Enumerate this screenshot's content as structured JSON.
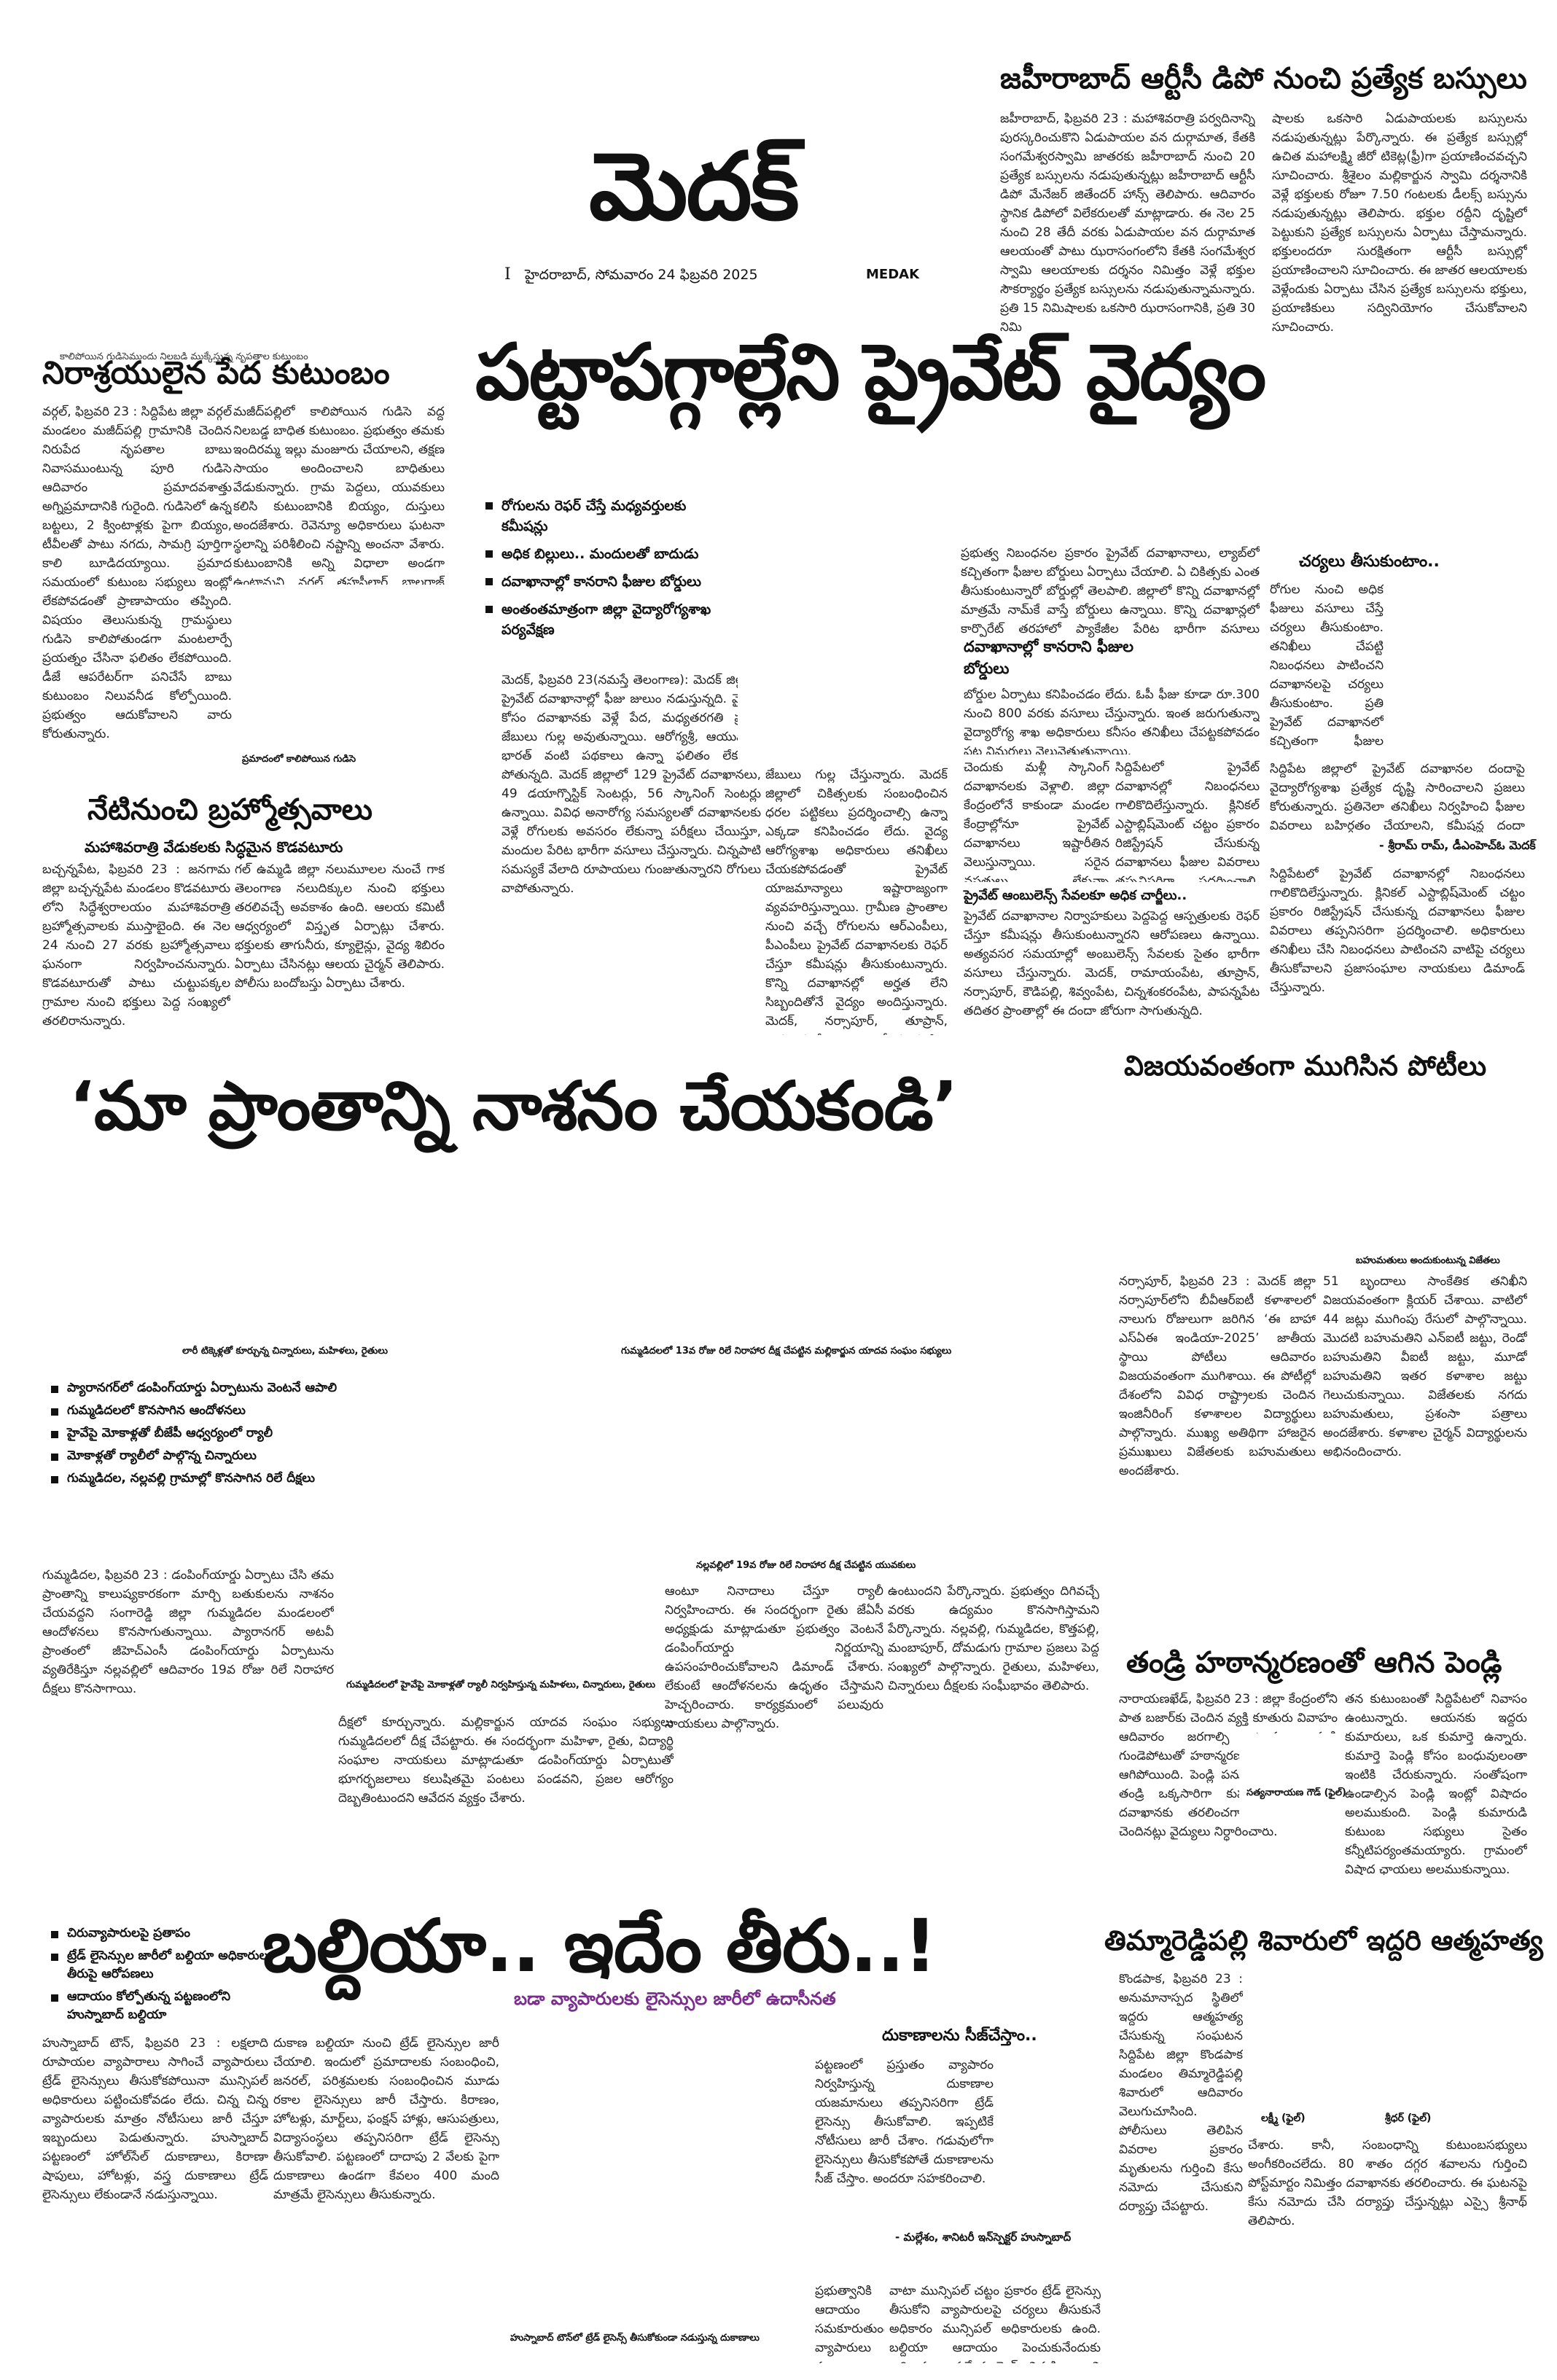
{
  "masthead": {
    "title": "మెదక్",
    "page_number": "I",
    "dateline": "హైదరాబాద్, సోమవారం 24 ఫిబ్రవరి 2025",
    "edition": "MEDAK"
  },
  "top_right": {
    "headline": "జహీరాబాద్ ఆర్టీసీ డిపో నుంచి ప్రత్యేక బస్సులు",
    "col1": "జహీరాబాద్, ఫిబ్రవరి 23 : మహాశివరాత్రి పర్వదినాన్ని పురస్కరించుకొని ఏడుపాయల వన దుర్గామాత, కేతకి సంగమేశ్వరస్వామి జాతరకు జహీరాబాద్ నుంచి 20 ప్రత్యేక బస్సులను నడుపుతున్నట్లు జహీరాబాద్ ఆర్టీసీ డిపో మేనేజర్ జితేందర్ హాన్స్ తెలిపారు. ఆదివారం స్థానిక డిపోలో విలేకరులతో మాట్లాడారు. ఈ నెల 25 నుంచి 28 తేదీ వరకు ఏడుపాయల వన దుర్గామాత ఆలయంతో పాటు ఝరాసంగంలోని కేతకి సంగమేశ్వర స్వామి ఆలయాలకు దర్శనం నిమిత్తం వెళ్లే భక్తుల సౌకర్యార్థం ప్రత్యేక బస్సులను నడుపుతున్నామన్నారు. ప్రతి 15 నిమిషాలకు ఒకసారి ఝరాసంగానికి, ప్రతి 30 నిమి",
    "col2": "షాలకు ఒకసారి ఏడుపాయలకు బస్సులను నడుపుతున్నట్లు పేర్కొన్నారు. ఈ ప్రత్యేక బస్సుల్లో ఉచిత మహాలక్ష్మి జీరో టికెట్ల(ఫ్రీ)గా ప్రయాణించవచ్చని సూచించారు. శ్రీశైలం మల్లికార్జున స్వామి దర్శనానికి వెళ్లే భక్తులకు రోజూ 7.50 గంటలకు డీలక్స్ బస్సును నడుపుతున్నట్లు తెలిపారు. భక్తుల రద్దీని దృష్టిలో పెట్టుకుని ప్రత్యేక బస్సులను ఏర్పాటు చేస్తామన్నారు. భక్తులందరూ సురక్షితంగా ఆర్టీసీ బస్సుల్లో ప్రయాణించాలని సూచించారు. ఈ జాతర ఆలయాలకు వెళ్లేందుకు ఏర్పాటు చేసిన ప్రత్యేక బస్సులను భక్తులు, ప్రయాణికులు సద్వినియోగం చేసుకోవాలని సూచించారు."
  },
  "left_story": {
    "kicker": "కాలిపోయిన గుడిసెముందు నిలబడి ముక్కేస్తున్న నృపతాల కుటుంబం",
    "headline": "నిరాశ్రయులైన పేద కుటుంబం",
    "col1": "వర్గల్, ఫిబ్రవరి 23 : సిద్దిపేట జిల్లా వర్గల్ మండలం మజీద్‌పల్లి గ్రామానికి చెందిన నిరుపేద నృపతాల బాబు నివాసముంటున్న పూరి గుడిసె ఆదివారం ప్రమాదవశాత్తు అగ్నిప్రమాదానికి గురైంది. గుడిసెలో ఉన్న బట్టలు, 2 క్వింటాళ్లకు పైగా బియ్యం, టీవీలతో పాటు నగదు, సామగ్రి పూర్తిగా కాలి బూడిదయ్యాయి. ప్రమాద సమయంలో కుటుంబ సభ్యులు ఇంట్లో లేకపోవడంతో ప్రాణాపాయం తప్పింది. విషయం తెలుసుకున్న గ్రామస్థులు గుడిసె కాలిపోతుండగా మంటలార్పే ప్రయత్నం చేసినా ఫలితం లేకపోయింది. డీజే ఆపరేటర్‌గా పనిచేసే బాబు కుటుంబం నిలువనీడ కోల్పోయింది. ప్రభుత్వం ఆదుకోవాలని వారు కోరుతున్నారు.",
    "col2": "మజీద్‌పల్లిలో కాలిపోయిన గుడిసె వద్ద నిలబడ్డ బాధిత కుటుంబం. ప్రభుత్వం తమకు ఇందిరమ్మ ఇల్లు మంజూరు చేయాలని, తక్షణ సాయం అందించాలని బాధితులు వేడుకున్నారు. గ్రామ పెద్దలు, యువకులు కలిసి కుటుంబానికి బియ్యం, దుస్తులు అందజేశారు. రెవెన్యూ అధికారులు ఘటనా స్థలాన్ని పరిశీలించి నష్టాన్ని అంచనా వేశారు. కుటుంబానికి అన్ని విధాలా అండగా ఉంటామని వర్గల్ తహసీల్దార్ బాలరాజ్ మీడియాకు తెలిపారు.",
    "photo_caption": "ప్రమాదంలో కాలిపోయిన గుడిసె"
  },
  "lead": {
    "headline": "పట్టాపగ్గాల్లేని ప్రైవేట్ వైద్యం",
    "bullets": [
      "రోగులను రెఫర్ చేస్తే మధ్యవర్తులకు కమీషన్లు",
      "అధిక బిల్లులు.. మందులతో బాదుడు",
      "దవాఖానాల్లో కానరాని ఫీజుల బోర్డులు",
      "అంతంతమాత్రంగా జిల్లా వైద్యారోగ్యశాఖ పర్యవేక్షణ"
    ],
    "col1": "మెదక్, ఫిబ్రవరి 23(నమస్తే తెలంగాణ): మెదక్ జిల్లాలో ప్రైవేట్ దవాఖానాల్లో ఫీజు జులుం నడుస్తున్నది. వైద్యం కోసం దవాఖానకు వెళ్లే పేద, మధ్యతరగతి ప్రజల జేబులు గుల్ల అవుతున్నాయి. ఆరోగ్యశ్రీ, ఆయుష్మాన్ భారత్ వంటి పథకాలు ఉన్నా ఫలితం లేకుండా పోతున్నది. మెదక్ జిల్లాలో 129 ప్రైవేట్ దవాఖానలు, 49 డయాగ్నొస్టిక్ సెంటర్లు, 56 స్కానింగ్ సెంటర్లు ఉన్నాయి. వివిధ అనారోగ్య సమస్యలతో దవాఖానలకు వెళ్లే రోగులకు అవసరం లేకున్నా పరీక్షలు చేయిస్తూ, మందుల పేరిట భారీగా వసూలు చేస్తున్నారు. చిన్నపాటి సమస్యకే వేలాది రూపాయలు గుంజుతున్నారని రోగులు వాపోతున్నారు.",
    "col2": "జేబులు గుల్ల చేస్తున్నారు. మెదక్ జిల్లాలో చికిత్సలకు సంబంధించిన ధరల పట్టికలు ప్రదర్శించాల్సి ఉన్నా ఎక్కడా కనిపించడం లేదు. వైద్య ఆరోగ్యశాఖ అధికారులు తనిఖీలు చేయకపోవడంతో ప్రైవేట్ యాజమాన్యాలు ఇష్టారాజ్యంగా వ్యవహరిస్తున్నాయి. గ్రామీణ ప్రాంతాల నుంచి వచ్చే రోగులను ఆర్ఎంపీలు, పీఎంపీలు ప్రైవేట్ దవాఖానలకు రెఫర్ చేస్తూ కమీషన్లు తీసుకుంటున్నారు. కొన్ని దవాఖానల్లో అర్హత లేని సిబ్బందితోనే వైద్యం అందిస్తున్నారు. మెదక్, నర్సాపూర్, తూప్రాన్, రామాయంపేట ప్రాంతాల్లో ఈ పరిస్థితి ఎక్కువగా ఉంది.",
    "col3": "ప్రభుత్వ నిబంధనల ప్రకారం ప్రైవేట్ దవాఖానాలు, ల్యాబ్‌లో కచ్చితంగా ఫీజుల బోర్డులు ఏర్పాటు చేయాలి. ఏ చికిత్సకు ఎంత తీసుకుంటున్నారో బోర్డుల్లో తెలపాలి. జిల్లాలో కొన్ని దవాఖానల్లో మాత్రమే నామ్‌కే వాస్తే బోర్డులు ఉన్నాయి. కొన్ని దవాఖాన్లలో కార్పొరేట్ తరహాలో ప్యాకేజీల పేరిట భారీగా వసూలు చేస్తున్నారు. రోగుల బంధువులు ప్రశ్నిస్తే దురుసుగా ప్రవర్తిస్తున్నారని ఆరోపణలు ఉన్నాయి.",
    "col4": "చెందుకు మళ్లీ స్కానింగ్ దవాఖానలకు వెళ్లాలి. జిల్లా కేంద్రంలోనే కాకుండా మండల కేంద్రాల్లోనూ ప్రైవేట్ దవాఖానలు ఇష్టారీతిన వెలుస్తున్నాయి. సరైన వసతులు లేకున్నా అనుమతులు పొందుతున్నారు. కొందరు వైద్యులు ప్రభుత్వ దవాఖానాల్లో విధులు నిర్వర్తిస్తూనే సొంత క్లినిక్‌లు నడుపుతున్నారు. ఫీజుల వివరాలు ప్రదర్శించాలని, అధిక వసూళ్లను అరికట్టాలని ప్రజలు కోరుతున్నారు.",
    "col5": "సిద్దిపేటలో ప్రైవేట్ దవాఖానల్లో నిబంధనలు గాలికొదిలేస్తున్నారు. క్లినికల్ ఎస్టాబ్లిష్‌మెంట్ చట్టం ప్రకారం రిజిస్ట్రేషన్ చేసుకున్న దవాఖానలు ఫీజుల వివరాలు తప్పనిసరిగా ప్రదర్శించాలి. అధికారులు తనిఖీలు చేసి నిబంధనలు పాటించని వాటిపై చర్యలు తీసుకోవాలని ప్రజాసంఘాల నాయకులు డిమాండ్ చేస్తున్నారు.",
    "sub1": "దవాఖానాల్లో కానరాని ఫీజుల బోర్డులు",
    "sub1_text": "బోర్డుల ఏర్పాటు కనిపించడం లేదు. ఓపీ ఫీజు కూడా రూ.300 నుంచి 800 వరకు వసూలు చేస్తున్నారు. ఇంత జరుగుతున్నా వైద్యారోగ్య శాఖ అధికారులు కనీసం తనిఖీలు చేపట్టకపోవడం పట్ల విమర్శలు వెల్లువెత్తుతున్నాయి.",
    "sub2": "ప్రైవేట్ ఆంబులెన్స్ సేవలకూ అధిక చార్జీలు..",
    "sub2_text": "ప్రైవేట్ దవాఖానాల నిర్వాహకులు పెద్దపెద్ద ఆస్పత్రులకు రెఫర్ చేస్తూ కమీషన్లు తీసుకుంటున్నారని ఆరోపణలు ఉన్నాయి. అత్యవసర సమయాల్లో అంబులెన్స్ సేవలకు సైతం భారీగా వసూలు చేస్తున్నారు. మెదక్, రామాయంపేట, తూప్రాన్, నర్సాపూర్, కౌడిపల్లి, శివ్వంపేట, చిన్నశంకరంపేట, పాపన్నపేట తదితర ప్రాంతాల్లో ఈ దందా జోరుగా సాగుతున్నది.",
    "sidebar_title": "చర్యలు తీసుకుంటాం..",
    "sidebar_text": "రోగుల నుంచి అధిక ఫీజులు వసూలు చేస్తే చర్యలు తీసుకుంటాం. తనిఖీలు చేపట్టి నిబంధనలు పాటించని దవాఖానలపై చర్యలు తీసుకుంటాం. ప్రతి ప్రైవేట్ దవాఖానలో కచ్చితంగా ఫీజుల బోర్డులు ఏర్పాటు చేయాలి. రెఫరల్ కమీషన్ల దందాపై నిఘా పెడతాం. ప్రజలు ఫిర్యాదు చేస్తే వెంటనే స్పందిస్తాం.",
    "sidebar_quote": "- శ్రీరామ్ రామ్, డీఎంహెచ్‌ఓ మెదక్",
    "sidebar_text2": "సిద్దిపేట జిల్లాలో ప్రైవేట్ దవాఖానల దందాపై వైద్యారోగ్యశాఖ ప్రత్యేక దృష్టి సారించాలని ప్రజలు కోరుతున్నారు. ప్రతినెలా తనిఖీలు నిర్వహించి ఫీజుల వివరాలు బహిర్గతం చేయాలని, కమీషన్ల దందా అరికట్టాలని వినియోగదారుల సంఘం ప్రతినిధులు సూచించారు."
  },
  "festival": {
    "headline": "నేటినుంచి బ్రహ్మోత్సవాలు",
    "subhead": "మహాశివరాత్రి వేడుకలకు సిద్ధమైన కొడవటూరు",
    "col1": "బచ్చన్నపేట, ఫిబ్రవరి 23 : జనగామ జిల్లా బచ్చన్నపేట మండలం కొడవటూరు లోని సిద్ధేశ్వరాలయం మహాశివరాత్రి బ్రహ్మోత్సవాలకు ముస్తాబైంది. ఈ నెల 24 నుంచి 27 వరకు బ్రహ్మోత్సవాలు ఘనంగా నిర్వహించనున్నారు. కొడవటూరుతో పాటు చుట్టుపక్కల గ్రామాల నుంచి భక్తులు పెద్ద సంఖ్యలో తరలిరానున్నారు.",
    "col2": "గల్ ఉమ్మడి జిల్లా నలుమూలల నుంచే గాక తెలంగాణ నలుదిక్కుల నుంచి భక్తులు తరలివచ్చే అవకాశం ఉంది. ఆలయ కమిటీ ఆధ్వర్యంలో విస్తృత ఏర్పాట్లు చేశారు. భక్తులకు తాగునీరు, క్యూలైన్లు, వైద్య శిబిరం ఏర్పాటు చేసినట్లు ఆలయ చైర్మన్ తెలిపారు. పోలీసు బందోబస్తు ఏర్పాటు చేశారు."
  },
  "banner": {
    "headline": "‘మా ప్రాంతాన్ని నాశనం చేయకండి’",
    "photo1_caption": "లారీ టిక్కెళ్లతో కూర్చున్న చిన్నారులు, మహిళలు, రైతులు",
    "photo2_caption": "గుమ్మడిదలలో 13వ రోజు రిలే నిరాహార దీక్ష చేపట్టిన మల్లికార్జున యాదవ సంఘం సభ్యులు",
    "bullets": [
      "ప్యారానగర్‌లో డంపింగ్‌యార్డు ఏర్పాటును వెంటనే ఆపాలి",
      "గుమ్మడిదలలో కొనసాగిన ఆందోళనలు",
      "హైవేపై మోకాళ్లతో బీజేపీ ఆధ్వర్యంలో ర్యాలీ",
      "మోకాళ్లతో ర్యాలీలో పాల్గొన్న చిన్నారులు",
      "గుమ్మడిదల, నల్లవల్లి గ్రామాల్లో కొనసాగిన రిలే దీక్షలు"
    ],
    "col1": "గుమ్మడిదల, ఫిబ్రవరి 23 : డంపింగ్‌యార్డు ఏర్పాటు చేసి తమ ప్రాంతాన్ని కాలుష్యకారకంగా మార్చి బతుకులను నాశనం చేయవద్దని సంగారెడ్డి జిల్లా గుమ్మడిదల మండలంలో ఆందోళనలు కొనసాగుతున్నాయి. ప్యారానగర్ అటవీ ప్రాంతంలో జీహెచ్‌ఎంసీ డంపింగ్‌యార్డు ఏర్పాటును వ్యతిరేకిస్తూ నల్లవల్లిలో ఆదివారం 19వ రోజు రిలే నిరాహార దీక్షలు కొనసాగాయి.",
    "mid_caption": "నల్లవల్లిలో 19వ రోజు రిలే నిరాహార దీక్ష చేపట్టిన యువకులు",
    "small_caption": "గుమ్మడిదలలో హైవేపై మోకాళ్లతో ర్యాలీ నిర్వహిస్తున్న మహిళలు, చిన్నారులు, రైతులు",
    "col2": "దీక్షలో కూర్చున్నారు. మల్లికార్జున యాదవ సంఘం సభ్యులు గుమ్మడిదలలో దీక్ష చేపట్టారు. ఈ సందర్భంగా మహిళా, రైతు, విద్యార్థి సంఘాల నాయకులు మాట్లాడుతూ డంపింగ్‌యార్డు ఏర్పాటుతో భూగర్భజలాలు కలుషితమై పంటలు పండవని, ప్రజల ఆరోగ్యం దెబ్బతింటుందని ఆవేదన వ్యక్తం చేశారు.",
    "col3": "ఆంటూ నినాదాలు చేస్తూ ర్యాలీ నిర్వహించారు. ఈ సందర్భంగా రైతు జేఏసీ అధ్యక్షుడు మాట్లాడుతూ ప్రభుత్వం వెంటనే డంపింగ్‌యార్డు నిర్ణయాన్ని ఉపసంహరించుకోవాలని డిమాండ్ చేశారు. లేకుంటే ఆందోళనలను ఉధృతం చేస్తామని హెచ్చరించారు. కార్యక్రమంలో పలువురు నాయకులు పాల్గొన్నారు.",
    "col4": "ఉంటుందని పేర్కొన్నారు. ప్రభుత్వం దిగివచ్చే వరకు ఉద్యమం కొనసాగిస్తామని పేర్కొన్నారు. నల్లవల్లి, గుమ్మడిదల, కొత్తపల్లి, మంబాపూర్, దోమడుగు గ్రామాల ప్రజలు పెద్ద సంఖ్యలో పాల్గొన్నారు. రైతులు, మహిళలు, చిన్నారులు దీక్షలకు సంఘీభావం తెలిపారు."
  },
  "right_results": {
    "headline": "విజయవంతంగా ముగిసిన పోటీలు",
    "photo_caption": "బహుమతులు అందుకుంటున్న విజేతలు",
    "col1": "నర్సాపూర్, ఫిబ్రవరి 23 : మెదక్ జిల్లా నర్సాపూర్‌లోని బీవీఆర్ఐటీ కళాశాలలో నాలుగు రోజులుగా జరిగిన ‘ఈ బాహా ఎస్ఏఈ ఇండియా-2025’ జాతీయ స్థాయి పోటీలు ఆదివారం విజయవంతంగా ముగిశాయి. ఈ పోటీల్లో దేశంలోని వివిధ రాష్ట్రాలకు చెందిన ఇంజినీరింగ్ కళాశాలల విద్యార్థులు పాల్గొన్నారు. ముఖ్య అతిథిగా హాజరైన ప్రముఖులు విజేతలకు బహుమతులు అందజేశారు.",
    "col2": "51 బృందాలు సాంకేతిక తనిఖీని విజయవంతంగా క్లియర్ చేశాయి. వాటిలో 44 జట్లు ముగింపు రేసులో పాల్గొన్నాయి. మొదటి బహుమతిని ఎన్ఐటీ జట్టు, రెండో బహుమతిని వీఐటీ జట్టు, మూడో బహుమతిని ఇతర కళాశాల జట్టు గెలుచుకున్నాయి. విజేతలకు నగదు బహుమతులు, ప్రశంసా పత్రాలు అందజేశారు. కళాశాల చైర్మన్ విద్యార్థులను అభినందించారు."
  },
  "wedding": {
    "headline": "తండ్రి హఠాన్మరణంతో ఆగిన పెండ్లి",
    "col1": "నారాయణఖేడ్, ఫిబ్రవరి 23 : జిల్లా కేంద్రంలోని పాత బజార్‌కు చెందిన వ్యక్తి కూతురు వివాహం ఆదివారం జరగాల్సి ఉండగా తండ్రి గుండెపోటుతో హఠాన్మరణం చెందడంతో పెండ్లి ఆగిపోయింది. పెండ్లి పనుల్లో నిమగ్నమై ఉన్న తండ్రి ఒక్కసారిగా కుప్పకూలాడు. స్థానిక దవాఖానకు తరలించగా అప్పటికే మృతి చెందినట్లు వైద్యులు నిర్ధారించారు.",
    "col2": "తన కుటుంబంతో సిద్దిపేటలో నివాసం ఉంటున్నారు. ఆయనకు ఇద్దరు కుమారులు, ఒక కుమార్తె ఉన్నారు. కుమార్తె పెండ్లి కోసం బంధువులంతా ఇంటికి చేరుకున్నారు. సంతోషంగా ఉండాల్సిన పెండ్లి ఇంట్లో విషాదం అలముకుంది. పెండ్లి కుమారుడి కుటుంబ సభ్యులు సైతం కన్నీటిపర్యంతమయ్యారు. గ్రామంలో విషాద ఛాయలు అలముకున్నాయి.",
    "photo_caption": "సత్యనారాయణ గౌడ్ (ఫైల్)"
  },
  "suicide": {
    "headline": "తిమ్మారెడ్డిపల్లి శివారులో ఇద్దరి ఆత్మహత్య",
    "col1": "కొండపాక, ఫిబ్రవరి 23 : అనుమానాస్పద స్థితిలో ఇద్దరు ఆత్మహత్య చేసుకున్న సంఘటన సిద్దిపేట జిల్లా కొండపాక మండలం తిమ్మారెడ్డిపల్లి శివారులో ఆదివారం వెలుగుచూసింది. పోలీసులు తెలిపిన వివరాల ప్రకారం మృతులను గుర్తించి కేసు నమోదు చేసుకుని దర్యాప్తు చేపట్టారు.",
    "col2": "చేశారు. కానీ, సంబంధాన్ని కుటుంబసభ్యులు అంగీకరించలేదు. 80 శాతం దగ్గర శవాలను గుర్తించి పోస్ట్‌మార్టం నిమిత్తం దవాఖానకు తరలించారు. ఈ ఘటనపై కేసు నమోదు చేసి దర్యాప్తు చేస్తున్నట్లు ఎస్సై శ్రీనాథ్ తెలిపారు.",
    "photo1_caption": "లక్ష్మీ (ఫైల్)",
    "photo2_caption": "శ్రీధర్ (ఫైల్)"
  },
  "bottom": {
    "headline": "బల్దియా.. ఇదేం తీరు..!",
    "subhead": "బడా వ్యాపారులకు లైసెన్సుల జారీలో ఉదాసీనత",
    "bullets": [
      "చిరువ్యాపారులపై ప్రతాపం",
      "ట్రేడ్ లైసెన్సుల జారీలో బల్దియా అధికారుల తీరుపై ఆరోపణలు",
      "ఆదాయం కోల్పోతున్న పట్టణంలోని హుస్నాబాద్ బల్దియా"
    ],
    "col1": "హుస్నాబాద్ టౌన్, ఫిబ్రవరి 23 : లక్షలాది రూపాయల వ్యాపారాలు సాగించే వ్యాపారులు ట్రేడ్ లైసెన్సులు తీసుకోకపోయినా మున్సిపల్ అధికారులు పట్టించుకోవడం లేదు. చిన్న చిన్న వ్యాపారులకు మాత్రం నోటీసులు జారీ చేస్తూ ఇబ్బందులు పెడుతున్నారు. హుస్నాబాద్ పట్టణంలో హోల్‌సేల్ దుకాణాలు, కిరాణా షాపులు, హోటళ్లు, వస్త్ర దుకాణాలు ట్రేడ్ లైసెన్సులు లేకుండానే నడుస్తున్నాయి.",
    "col2": "దుకాణ బల్దియా నుంచి ట్రేడ్ లైసెన్సుల జారీ చేయాలి. ఇందులో ప్రమాదాలకు సంబంధించి, జనరల్, పరిశ్రమలకు సంబంధించిన మూడు రకాల లైసెన్సులు జారీ చేస్తారు. కిరాణం, హోటళ్లు, మార్ట్‌లు, ఫంక్షన్ హాళ్లు, ఆసుపత్రులు, విద్యాసంస్థలు తప్పనిసరిగా ట్రేడ్ లైసెన్సు తీసుకోవాలి. పట్టణంలో దాదాపు 2 వేలకు పైగా దుకాణాలు ఉండగా కేవలం 400 మంది మాత్రమే లైసెన్సులు తీసుకున్నారు.",
    "caption": "హుస్నాబాద్ టౌన్‌లో ట్రేడ్ లైసెన్స్ తీసుకోకుండా నడుస్తున్న దుకాణాలు",
    "col3": "వాటా మున్సిపల్ చట్టం ప్రకారం ట్రేడ్ లైసెన్సు తీసుకోని వ్యాపారులపై చర్యలు తీసుకునే అధికారం మున్సిపల్ అధికారులకు ఉంది. బల్దియా ఆదాయం పెంచుకునేందుకు అధికారులు ప్రత్యేక డ్రైవ్ నిర్వహించాలని పట్టణ ప్రజలు కోరుతున్నారు.",
    "sidebar_title": "దుకాణాలను సీజ్‌చేస్తాం..",
    "sidebar_text": "పట్టణంలో ప్రస్తుతం వ్యాపారం నిర్వహిస్తున్న దుకాణాల యజమానులు తప్పనిసరిగా ట్రేడ్ లైసెన్సు తీసుకోవాలి. ఇప్పటికే నోటీసులు జారీ చేశాం. గడువులోగా లైసెన్సులు తీసుకోకపోతే దుకాణాలను సీజ్ చేస్తాం. అందరూ సహకరించాలి.",
    "sidebar_quote": "- మల్లేశం, శానిటరీ ఇన్‌స్పెక్టర్ హుస్నాబాద్",
    "col4": "ప్రభుత్వానికి ఆదాయం సమకూరుతుంది. వ్యాపారులు కూడా ముందుకు వచ్చి లైసెన్సులు తీసుకోవాలని అధికారులు సూచించారు. ప్రతి ఏటా లైసెన్సులను రెన్యువల్ చేసుకోవాలని పేర్కొన్నారు."
  }
}
